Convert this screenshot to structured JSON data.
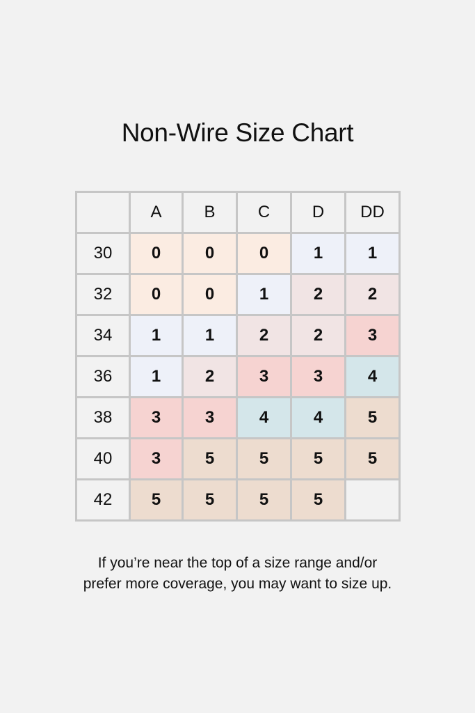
{
  "title": "Non-Wire Size Chart",
  "note_lines": [
    "If you’re near the top of a size range and/or",
    "prefer more coverage, you may want to size up."
  ],
  "chart_data": {
    "type": "table",
    "title": "Non-Wire Size Chart",
    "columns": [
      "A",
      "B",
      "C",
      "D",
      "DD"
    ],
    "rows": [
      "30",
      "32",
      "34",
      "36",
      "38",
      "40",
      "42"
    ],
    "values": [
      [
        "0",
        "0",
        "0",
        "1",
        "1"
      ],
      [
        "0",
        "0",
        "1",
        "2",
        "2"
      ],
      [
        "1",
        "1",
        "2",
        "2",
        "3"
      ],
      [
        "1",
        "2",
        "3",
        "3",
        "4"
      ],
      [
        "3",
        "3",
        "4",
        "4",
        "5"
      ],
      [
        "3",
        "5",
        "5",
        "5",
        "5"
      ],
      [
        "5",
        "5",
        "5",
        "5",
        ""
      ]
    ],
    "value_colors": {
      "0": "#fbece2",
      "1": "#eef1f9",
      "2": "#f1e4e4",
      "3": "#f6d3d1",
      "4": "#d4e6ea",
      "5": "#eddccf",
      "": "#f2f2f2"
    }
  }
}
